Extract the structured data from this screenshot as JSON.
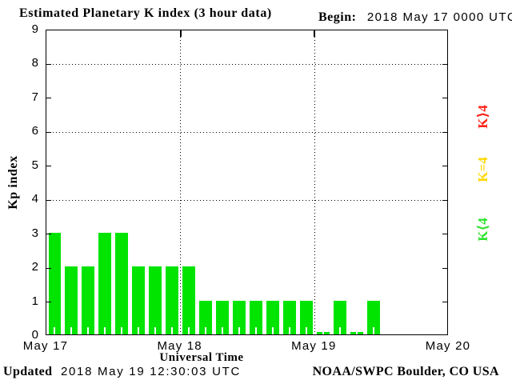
{
  "header": {
    "title": "Estimated Planetary K index (3 hour data)",
    "begin_label": "Begin:",
    "begin_value": "2018 May 17 0000 UTC"
  },
  "chart_data": {
    "type": "bar",
    "title": "Estimated Planetary K index (3 hour data)",
    "begin": "2018 May 17 0000 UTC",
    "xlabel": "Universal Time",
    "ylabel": "Kp index",
    "ylim": [
      0,
      9
    ],
    "yticks": [
      0,
      1,
      2,
      3,
      4,
      5,
      6,
      7,
      8,
      9
    ],
    "grid_y_values": [
      4,
      6,
      8
    ],
    "x_tick_labels": [
      "May 17",
      "May 18",
      "May 19",
      "May 20"
    ],
    "interval_hours": 3,
    "slots_total": 24,
    "values": [
      3,
      2,
      2,
      3,
      3,
      2,
      2,
      2,
      2,
      1,
      1,
      1,
      1,
      1,
      1,
      1,
      0,
      1,
      0,
      1
    ],
    "bar_color": "#00e400",
    "grid": true,
    "legend_position": "right"
  },
  "legend": {
    "items": [
      {
        "name": "k-gt-4",
        "label": "K⟩4",
        "color": "#ff2418"
      },
      {
        "name": "k-eq-4",
        "label": "K=4",
        "color": "#ffd700"
      },
      {
        "name": "k-lt-4",
        "label": "K⟨4",
        "color": "#2ee22e"
      }
    ]
  },
  "footer": {
    "updated_label": "Updated",
    "updated_value": "2018 May 19 12:30:03 UTC",
    "credit": "NOAA/SWPC Boulder, CO USA"
  }
}
